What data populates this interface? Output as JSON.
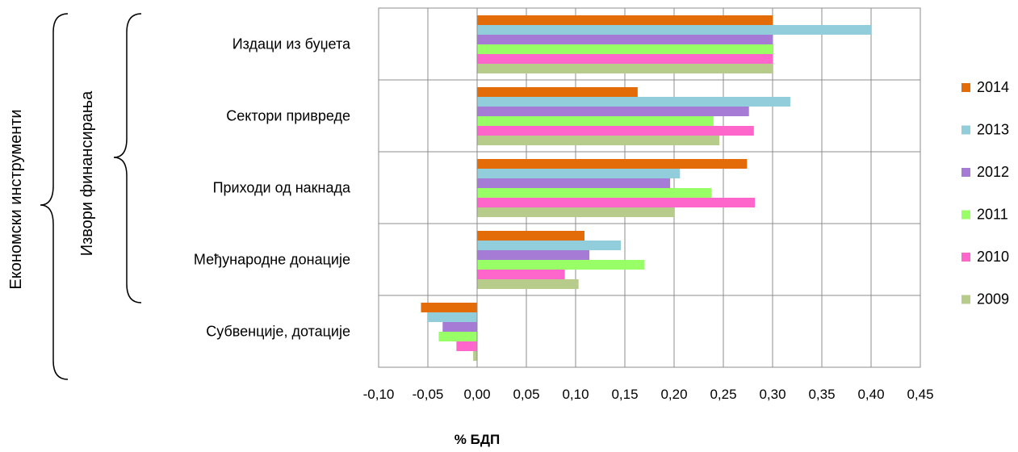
{
  "chart_data": {
    "type": "bar",
    "orientation": "horizontal",
    "title": "",
    "xlabel": "% БДП",
    "group_labels": [
      "Економски инструменти",
      "Извори финансирања"
    ],
    "categories": [
      "Издаци из буџета",
      "Сектори привреде",
      "Приходи од накнада",
      "Међународне донације",
      "Субвенције, дотације"
    ],
    "x_ticks": [
      "-0,10",
      "-0,05",
      "0,00",
      "0,05",
      "0,10",
      "0,15",
      "0,20",
      "0,25",
      "0,30",
      "0,35",
      "0,40",
      "0,45"
    ],
    "xlim": [
      -0.1,
      0.45
    ],
    "grid": true,
    "legend_position": "right",
    "series": [
      {
        "name": "2014",
        "color": "#E36C09",
        "values": [
          0.3,
          0.163,
          0.274,
          0.109,
          -0.057
        ]
      },
      {
        "name": "2013",
        "color": "#92CDDC",
        "values": [
          0.4,
          0.318,
          0.206,
          0.146,
          -0.05
        ]
      },
      {
        "name": "2012",
        "color": "#A57BD5",
        "values": [
          0.3,
          0.276,
          0.196,
          0.114,
          -0.035
        ]
      },
      {
        "name": "2011",
        "color": "#99FF66",
        "values": [
          0.3,
          0.24,
          0.238,
          0.17,
          -0.039
        ]
      },
      {
        "name": "2010",
        "color": "#FF66CC",
        "values": [
          0.3,
          0.281,
          0.282,
          0.089,
          -0.021
        ]
      },
      {
        "name": "2009",
        "color": "#B7CC8A",
        "values": [
          0.3,
          0.246,
          0.2,
          0.103,
          -0.004
        ]
      }
    ]
  }
}
